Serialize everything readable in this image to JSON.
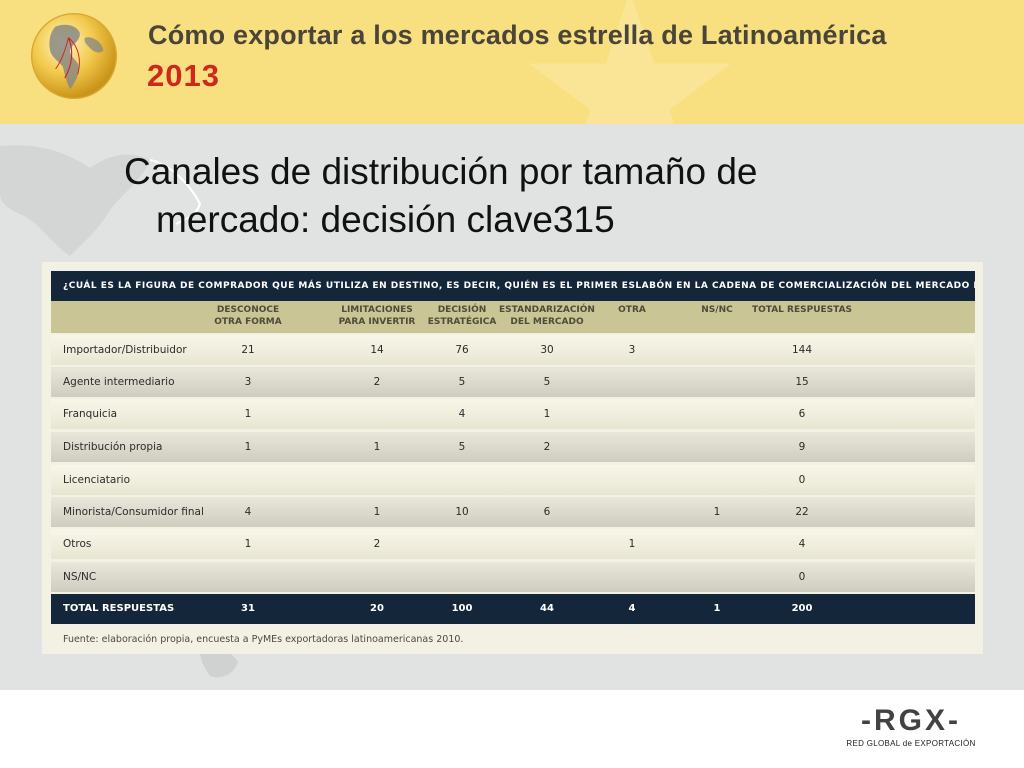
{
  "header": {
    "title": "Cómo exportar a los mercados estrella de Latinoamérica",
    "year": "2013"
  },
  "slide": {
    "title_line1": "Canales de distribución por tamaño de",
    "title_line2": "mercado: decisión clave315"
  },
  "table": {
    "question": "¿CUÁL ES LA FIGURA DE COMPRADOR QUE MÁS UTILIZA EN DESTINO, ES DECIR, QUIÉN ES EL PRIMER ESLABÓN EN LA CADENA DE COMERCIALIZACIÓN DEL MERCADO DE DESTINO?",
    "columns": [
      {
        "line1": "DESCONOCE",
        "line2": "OTRA FORMA"
      },
      {
        "line1": "LIMITACIONES",
        "line2": "PARA INVERTIR"
      },
      {
        "line1": "DECISIÓN",
        "line2": "ESTRATÉGICA"
      },
      {
        "line1": "ESTANDARIZACIÓN",
        "line2": "DEL MERCADO"
      },
      {
        "line1": "OTRA",
        "line2": ""
      },
      {
        "line1": "NS/NC",
        "line2": ""
      },
      {
        "line1": "TOTAL RESPUESTAS",
        "line2": ""
      }
    ],
    "rows": [
      {
        "label": "Importador/Distribuidor",
        "values": [
          "21",
          "14",
          "76",
          "30",
          "3",
          "",
          "144"
        ]
      },
      {
        "label": "Agente intermediario",
        "values": [
          "3",
          "2",
          "5",
          "5",
          "",
          "",
          "15"
        ]
      },
      {
        "label": "Franquicia",
        "values": [
          "1",
          "",
          "4",
          "1",
          "",
          "",
          "6"
        ]
      },
      {
        "label": "Distribución propia",
        "values": [
          "1",
          "1",
          "5",
          "2",
          "",
          "",
          "9"
        ]
      },
      {
        "label": "Licenciatario",
        "values": [
          "",
          "",
          "",
          "",
          "",
          "",
          "0"
        ]
      },
      {
        "label": "Minorista/Consumidor final",
        "values": [
          "4",
          "1",
          "10",
          "6",
          "",
          "1",
          "22"
        ]
      },
      {
        "label": "Otros",
        "values": [
          "1",
          "2",
          "",
          "",
          "1",
          "",
          "4"
        ]
      },
      {
        "label": "NS/NC",
        "values": [
          "",
          "",
          "",
          "",
          "",
          "",
          "0"
        ]
      }
    ],
    "total": {
      "label": "TOTAL RESPUESTAS",
      "values": [
        "31",
        "20",
        "100",
        "44",
        "4",
        "1",
        "200"
      ]
    },
    "source": "Fuente: elaboración propia, encuesta a PyMEs exportadoras latinoamericanas 2010."
  },
  "logo": {
    "main": "-RGX-",
    "sub": "RED GLOBAL de EXPORTACIÓN"
  },
  "colors": {
    "header_bg": "#f8df80",
    "year_red": "#d0271d",
    "navy": "#14273a",
    "column_header_bg": "#c9c594"
  }
}
